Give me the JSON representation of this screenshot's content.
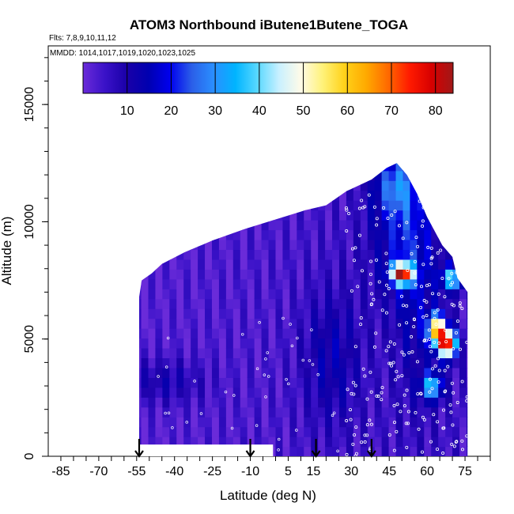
{
  "chart_data": {
    "type": "heatmap",
    "title": "ATOM3 Northbound iButene1Butene_TOGA",
    "flights_note": "Flts: 7,8,9,10,11,12",
    "dates_note": "MMDD: 1014,1017,1019,1020,1023,1025",
    "xlabel": "Latitude (deg N)",
    "ylabel": "Altitude (m)",
    "xlim": [
      -90,
      85
    ],
    "ylim": [
      0,
      17500
    ],
    "x_ticks": [
      "-85",
      "-70",
      "-55",
      "-40",
      "-25",
      "-10",
      "5",
      "15",
      "30",
      "45",
      "60",
      "75"
    ],
    "y_ticks": [
      "0",
      "5000",
      "10000",
      "15000"
    ],
    "colorbar": {
      "range": [
        0,
        84
      ],
      "ticks": [
        "10",
        "20",
        "30",
        "40",
        "50",
        "60",
        "70",
        "80"
      ],
      "colors": [
        "#6a2bd9",
        "#3a12c8",
        "#1a00a8",
        "#0000b0",
        "#0000ee",
        "#2b5fe8",
        "#2a8fff",
        "#00b4ff",
        "#58d8ff",
        "#c8f0ff",
        "#fffbe8",
        "#fff27a",
        "#ffd21a",
        "#ffaa00",
        "#ff6a00",
        "#ff1a00",
        "#d70000",
        "#a01818"
      ]
    },
    "profile_envelope": {
      "lat": [
        -54,
        -53,
        -49,
        -45,
        -36,
        -25,
        -12,
        0,
        12,
        20,
        28,
        38,
        44,
        48,
        52,
        56,
        60,
        66,
        70,
        72,
        76
      ],
      "top_alt": [
        6800,
        7500,
        7800,
        8200,
        8700,
        9200,
        9700,
        10100,
        10500,
        10700,
        11300,
        11800,
        12300,
        12500,
        12000,
        11200,
        10200,
        9000,
        8500,
        7600,
        7000
      ]
    },
    "annotations": {
      "arrow_latitudes": [
        -54,
        -10,
        16,
        38
      ]
    },
    "grid": false,
    "legend_placement": "top"
  }
}
